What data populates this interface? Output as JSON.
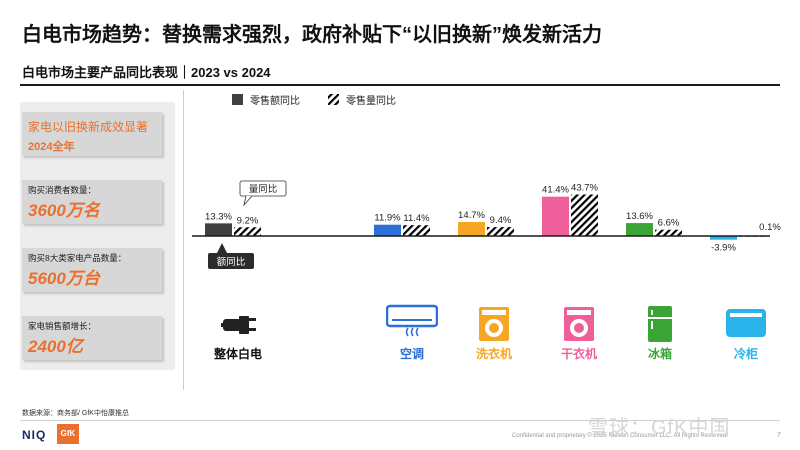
{
  "title": "白电市场趋势：替换需求强烈，政府补贴下“以旧换新”焕发新活力",
  "subtitle": "白电市场主要产品同比表现｜2023 vs 2024",
  "highlight": {
    "title": "家电以旧换新成效显著",
    "year": "2024全年"
  },
  "stats": [
    {
      "label": "购买消费者数量：",
      "value": "3600万名"
    },
    {
      "label": "购买8大类家电产品数量：",
      "value": "5600万台"
    },
    {
      "label": "家电销售额增长：",
      "value": "2400亿"
    }
  ],
  "callouts": {
    "volume": "量同比",
    "value": "额同比"
  },
  "categories_display": [
    "整体白电",
    "空调",
    "洗衣机",
    "干衣机",
    "冰箱",
    "冷柜"
  ],
  "colors": {
    "整体白电": "#404040",
    "空调": "#2e6fd8",
    "洗衣机": "#f5a623",
    "干衣机": "#ef5f9a",
    "冰箱": "#3aa536",
    "冷柜": "#2ab3ea",
    "accent": "#e8712f"
  },
  "icons": [
    "plug-icon",
    "air-conditioner-icon",
    "washing-machine-icon",
    "dryer-icon",
    "refrigerator-icon",
    "freezer-icon"
  ],
  "chart_data": {
    "type": "bar",
    "categories": [
      "整体白电",
      "空调",
      "洗衣机",
      "干衣机",
      "冰箱",
      "冷柜"
    ],
    "series": [
      {
        "name": "零售额同比",
        "values": [
          13.3,
          11.9,
          14.7,
          41.4,
          13.6,
          -3.9
        ],
        "labels": [
          "13.3%",
          "11.9%",
          "14.7%",
          "41.4%",
          "13.6%",
          "-3.9%"
        ]
      },
      {
        "name": "零售量同比",
        "values": [
          9.2,
          11.4,
          9.4,
          43.7,
          6.6,
          0.1
        ],
        "labels": [
          "9.2%",
          "11.4%",
          "9.4%",
          "43.7%",
          "6.6%",
          "0.1%"
        ]
      }
    ],
    "legend": [
      "零售额同比",
      "零售量同比"
    ],
    "legend_position": "top-left",
    "grid": false
  },
  "source": "数据来源：商务部/ GfK中怡康推总",
  "footer": {
    "brand1": "NIQ",
    "brand2": "GfK",
    "confidential": "Confidential and proprietary © 2025 Nielsen Consumer LLC. All Rights Reserved.",
    "watermark": "雪球：GfK中国",
    "page": "7"
  }
}
